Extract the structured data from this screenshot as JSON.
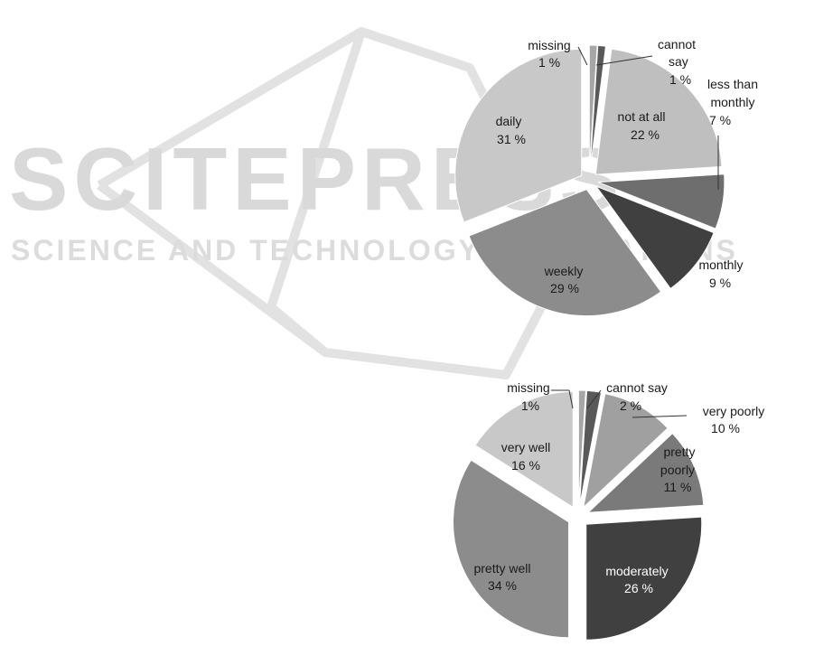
{
  "watermark": {
    "title": "SCITEPRESS",
    "subtitle": "SCIENCE AND TECHNOLOGY PUBLICATIONS"
  },
  "chart_data": [
    {
      "type": "pie",
      "title": "",
      "unit": "%",
      "slices": [
        {
          "label": "missing",
          "value": 1,
          "value_label": "1 %",
          "color": "#a6a6a6"
        },
        {
          "label": "cannot say",
          "value": 1,
          "value_label": "1 %",
          "color": "#595959"
        },
        {
          "label": "not at all",
          "value": 22,
          "value_label": "22 %",
          "color": "#bfbfbf"
        },
        {
          "label": "less than monthly",
          "value": 7,
          "value_label": "7 %",
          "color": "#6e6e6e"
        },
        {
          "label": "monthly",
          "value": 9,
          "value_label": "9 %",
          "color": "#404040"
        },
        {
          "label": "weekly",
          "value": 29,
          "value_label": "29 %",
          "color": "#8c8c8c"
        },
        {
          "label": "daily",
          "value": 31,
          "value_label": "31 %",
          "color": "#c8c8c8"
        }
      ]
    },
    {
      "type": "pie",
      "title": "",
      "unit": "%",
      "slices": [
        {
          "label": "missing",
          "value": 1,
          "value_label": "1%",
          "color": "#a6a6a6"
        },
        {
          "label": "cannot say",
          "value": 2,
          "value_label": "2 %",
          "color": "#595959"
        },
        {
          "label": "very poorly",
          "value": 10,
          "value_label": "10 %",
          "color": "#a0a0a0"
        },
        {
          "label": "pretty poorly",
          "value": 11,
          "value_label": "11 %",
          "color": "#7a7a7a"
        },
        {
          "label": "moderately",
          "value": 26,
          "value_label": "26 %",
          "color": "#404040"
        },
        {
          "label": "pretty well",
          "value": 34,
          "value_label": "34 %",
          "color": "#8c8c8c"
        },
        {
          "label": "very well",
          "value": 16,
          "value_label": "16 %",
          "color": "#c8c8c8"
        }
      ]
    }
  ]
}
